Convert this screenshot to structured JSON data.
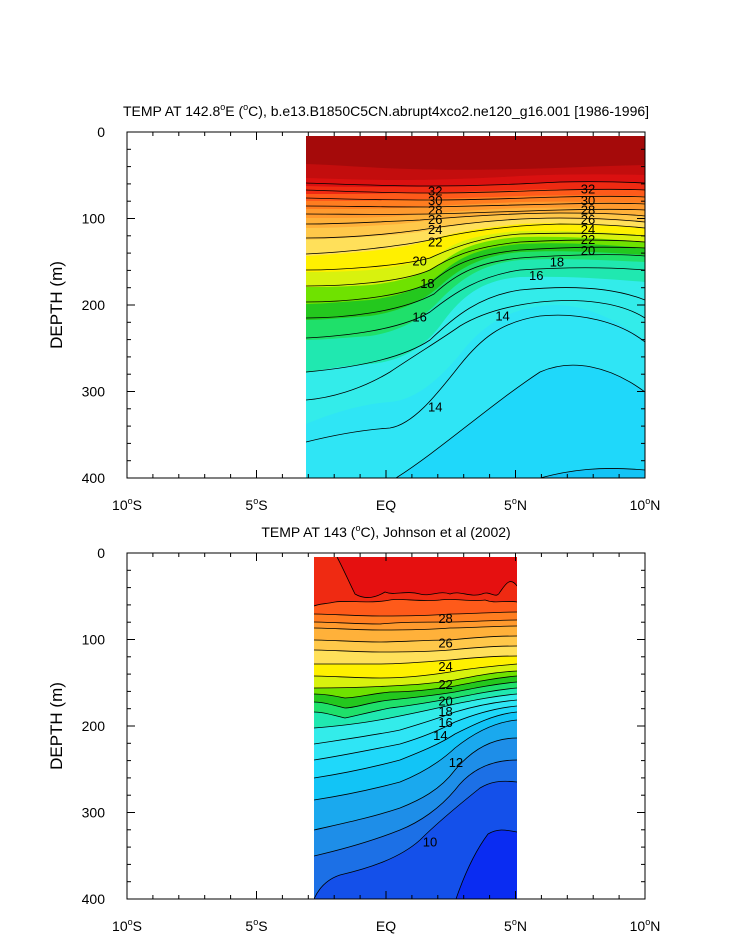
{
  "chart_data": [
    {
      "type": "contour",
      "title": "TEMP AT 142.8°E (°C), b.e13.B1850C5CN.abrupt4xco2.ne120_g16.001 [1986-1996]",
      "title_parts": {
        "pre": "TEMP AT 142.8",
        "deg1": "o",
        "mid": "E (",
        "deg2": "o",
        "post": "C), b.e13.B1850C5CN.abrupt4xco2.ne120_g16.001 [1986-1996]"
      },
      "ylabel": "DEPTH (m)",
      "xlim": [
        -10,
        10
      ],
      "ylim": [
        0,
        400
      ],
      "y_inverted": true,
      "data_x_range": [
        -3,
        10
      ],
      "x_ticks": [
        -10,
        -5,
        0,
        5,
        10
      ],
      "y_ticks": [
        0,
        100,
        200,
        300,
        400
      ],
      "contour_labels": [
        {
          "x": 1.9,
          "y": 68,
          "text": "32"
        },
        {
          "x": 1.9,
          "y": 79,
          "text": "30"
        },
        {
          "x": 1.9,
          "y": 90,
          "text": "28"
        },
        {
          "x": 1.9,
          "y": 101,
          "text": "26"
        },
        {
          "x": 1.9,
          "y": 113,
          "text": "24"
        },
        {
          "x": 1.9,
          "y": 127,
          "text": "22"
        },
        {
          "x": 1.3,
          "y": 149,
          "text": "20"
        },
        {
          "x": 1.6,
          "y": 175,
          "text": "18"
        },
        {
          "x": 1.3,
          "y": 214,
          "text": "16"
        },
        {
          "x": 1.9,
          "y": 318,
          "text": "14"
        },
        {
          "x": 7.8,
          "y": 66,
          "text": "32"
        },
        {
          "x": 7.8,
          "y": 79,
          "text": "30"
        },
        {
          "x": 7.8,
          "y": 90,
          "text": "28"
        },
        {
          "x": 7.8,
          "y": 101,
          "text": "26"
        },
        {
          "x": 7.8,
          "y": 113,
          "text": "24"
        },
        {
          "x": 7.8,
          "y": 124,
          "text": "22"
        },
        {
          "x": 7.8,
          "y": 137,
          "text": "20"
        },
        {
          "x": 6.6,
          "y": 150,
          "text": "18"
        },
        {
          "x": 5.8,
          "y": 166,
          "text": "16"
        },
        {
          "x": 4.5,
          "y": 213,
          "text": "14"
        }
      ]
    },
    {
      "type": "contour",
      "title": "TEMP AT 143 (°C), Johnson et al (2002)",
      "title_parts": {
        "pre": "TEMP AT 143 (",
        "deg1": "o",
        "post": "C), Johnson et al (2002)"
      },
      "ylabel": "DEPTH (m)",
      "xlim": [
        -10,
        10
      ],
      "ylim": [
        0,
        400
      ],
      "y_inverted": true,
      "data_x_range": [
        -2.7,
        5
      ],
      "x_ticks": [
        -10,
        -5,
        0,
        5,
        10
      ],
      "y_ticks": [
        0,
        100,
        200,
        300,
        400
      ],
      "contour_labels": [
        {
          "x": 2.3,
          "y": 76,
          "text": "28"
        },
        {
          "x": 2.3,
          "y": 104,
          "text": "26"
        },
        {
          "x": 2.3,
          "y": 131,
          "text": "24"
        },
        {
          "x": 2.3,
          "y": 152,
          "text": "22"
        },
        {
          "x": 2.3,
          "y": 171,
          "text": "20"
        },
        {
          "x": 2.3,
          "y": 183,
          "text": "18"
        },
        {
          "x": 2.3,
          "y": 196,
          "text": "16"
        },
        {
          "x": 2.1,
          "y": 211,
          "text": "14"
        },
        {
          "x": 2.7,
          "y": 242,
          "text": "12"
        },
        {
          "x": 1.7,
          "y": 334,
          "text": "10"
        }
      ]
    }
  ],
  "x_tick_labels": [
    {
      "num": "10",
      "deg": "o",
      "hem": "S"
    },
    {
      "num": "5",
      "deg": "o",
      "hem": "S"
    },
    {
      "num": "EQ",
      "deg": "",
      "hem": ""
    },
    {
      "num": "5",
      "deg": "o",
      "hem": "N"
    },
    {
      "num": "10",
      "deg": "o",
      "hem": "N"
    }
  ],
  "y_tick_labels": [
    "0",
    "100",
    "200",
    "300",
    "400"
  ],
  "palette": {
    "c34": "#a50a0a",
    "c32": "#c30d0d",
    "c31": "#da1010",
    "c30": "#ef2a12",
    "c28": "#fe5a1a",
    "c27": "#ff7d20",
    "c26": "#ff9a2e",
    "c25": "#ffb13a",
    "c24": "#ffc84a",
    "c23": "#ffe05a",
    "c22": "#fff000",
    "c21": "#d8f20e",
    "c20": "#6fe200",
    "c19": "#24c81e",
    "c18": "#1fe06a",
    "c17": "#20e8b0",
    "c16": "#33ecea",
    "c15": "#2fe5f5",
    "c14": "#1fd8fa",
    "c13": "#12c4f6",
    "c12": "#1aa9ee",
    "c11": "#1e8ee8",
    "c10": "#1c70e6",
    "c9": "#1450ea",
    "c8": "#0a2cf2",
    "line": "#000000"
  }
}
